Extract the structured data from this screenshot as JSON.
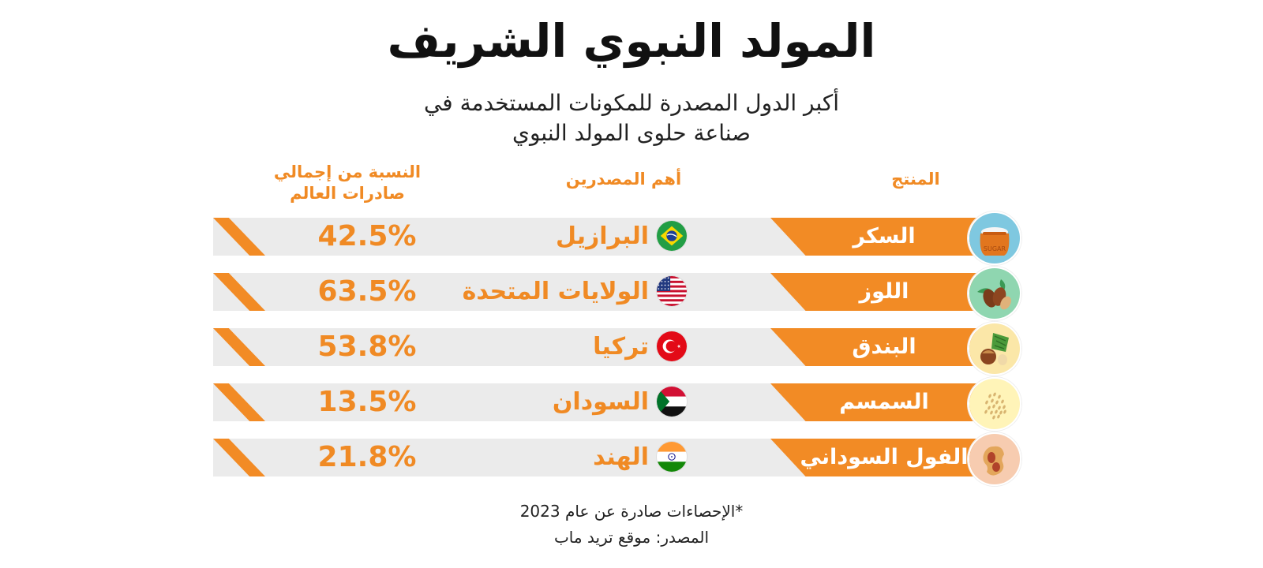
{
  "title": "المولد النبوي الشريف",
  "subtitle_line1": "أكبر الدول المصدرة للمكونات المستخدمة في",
  "subtitle_line2": "صناعة حلوى المولد النبوي",
  "headers": {
    "product": "المنتج",
    "exporter": "أهم المصدرين",
    "share_line1": "النسبة من إجمالي",
    "share_line2": "صادرات العالم"
  },
  "colors": {
    "accent": "#f28b25",
    "band": "#ebebeb"
  },
  "chart_data": {
    "type": "table",
    "columns": [
      "المنتج",
      "أهم المصدرين",
      "النسبة من إجمالي صادرات العالم"
    ],
    "rows": [
      {
        "product": "السكر",
        "country": "البرازيل",
        "share": "42.5%",
        "share_value": 42.5,
        "icon": "sugar-sack-icon",
        "flag": "brazil-flag-icon"
      },
      {
        "product": "اللوز",
        "country": "الولايات المتحدة",
        "share": "63.5%",
        "share_value": 63.5,
        "icon": "almond-icon",
        "flag": "usa-flag-icon"
      },
      {
        "product": "البندق",
        "country": "تركيا",
        "share": "53.8%",
        "share_value": 53.8,
        "icon": "hazelnut-icon",
        "flag": "turkey-flag-icon"
      },
      {
        "product": "السمسم",
        "country": "السودان",
        "share": "13.5%",
        "share_value": 13.5,
        "icon": "sesame-icon",
        "flag": "sudan-flag-icon"
      },
      {
        "product": "الفول السوداني",
        "country": "الهند",
        "share": "21.8%",
        "share_value": 21.8,
        "icon": "peanut-icon",
        "flag": "india-flag-icon"
      }
    ]
  },
  "footer_note": "*الإحصاءات صادرة عن عام 2023",
  "source": "المصدر: موقع تريد ماب"
}
